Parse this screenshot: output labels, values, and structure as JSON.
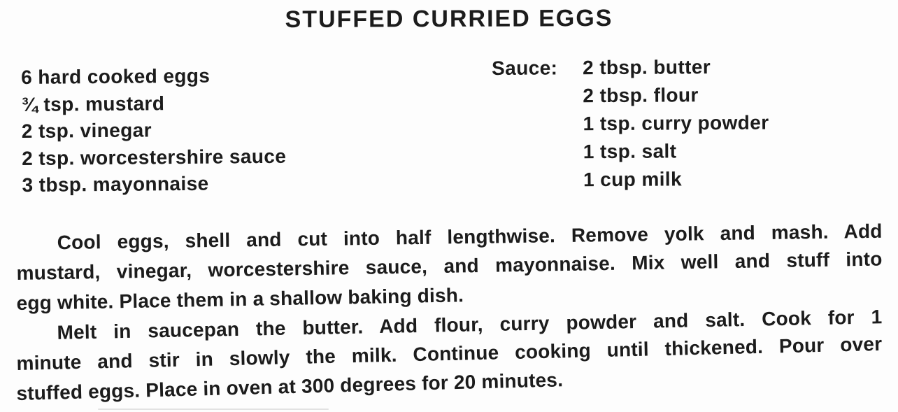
{
  "recipe": {
    "title": "STUFFED CURRIED EGGS",
    "ingredients_left": [
      "6 hard cooked eggs",
      "¾ tsp. mustard",
      "2 tsp. vinegar",
      "2 tsp. worcestershire sauce",
      "3 tbsp. mayonnaise"
    ],
    "sauce_label": "Sauce:",
    "sauce_ingredients": [
      "2 tbsp. butter",
      "2 tbsp. flour",
      "1 tsp. curry powder",
      "1 tsp. salt",
      "1 cup milk"
    ],
    "instructions": {
      "paragraph1": {
        "line1": "Cool eggs, shell and cut into half lengthwise. Remove yolk and mash. Add",
        "line2": "mustard, vinegar, worcestershire sauce, and mayonnaise. Mix well and stuff into",
        "line3": "egg white. Place them in a shallow baking dish."
      },
      "paragraph2": {
        "line1": "Melt in saucepan the butter. Add flour, curry powder and salt. Cook for 1",
        "line2": "minute and stir in slowly the milk. Continue cooking until thickened. Pour over",
        "line3": "stuffed eggs. Place in oven at 300 degrees for 20 minutes."
      }
    }
  },
  "colors": {
    "ink": "#1c1c1c",
    "paper": "#fdfdfd"
  }
}
